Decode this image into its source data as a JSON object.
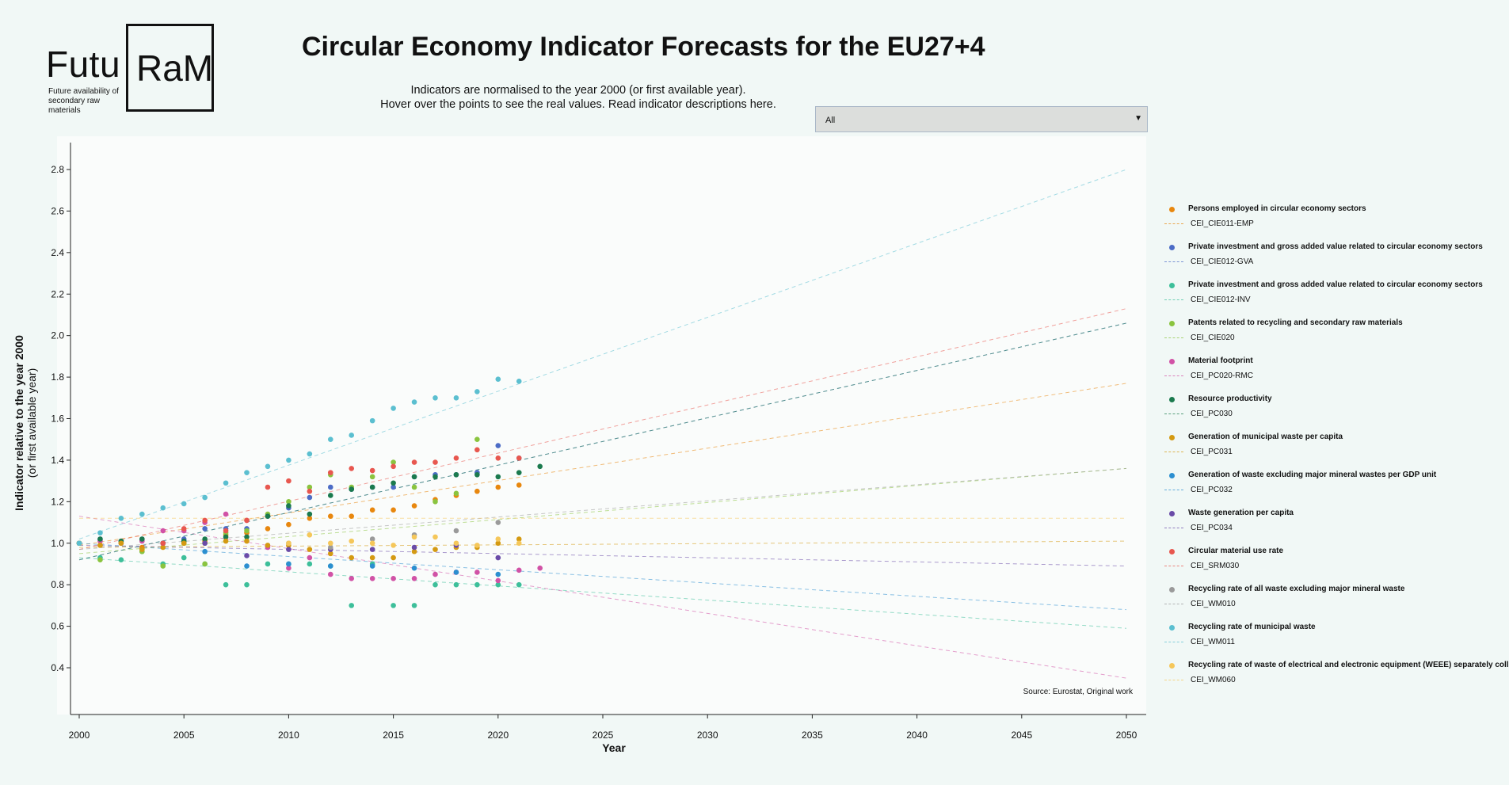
{
  "logo": {
    "left_text": "Futu",
    "box_text": "RaM",
    "tagline": "Future availability of secondary raw materials"
  },
  "header": {
    "title": "Circular Economy Indicator Forecasts for the EU27+4",
    "subtitle_line1": "Indicators are normalised to the year 2000 (or first available year).",
    "subtitle_line2": "Hover over the points to see the real values. Read indicator descriptions here."
  },
  "dropdown": {
    "selected": "All"
  },
  "source": "Source: Eurostat, Original work",
  "chart_data": {
    "type": "scatter",
    "xlabel": "Year",
    "ylabel_line1": "Indicator relative to the year 2000",
    "ylabel_line2": "(or first available year)",
    "xlim": [
      2000,
      2050
    ],
    "ylim": [
      0.2,
      2.95
    ],
    "x_ticks": [
      2000,
      2005,
      2010,
      2015,
      2020,
      2025,
      2030,
      2035,
      2040,
      2045,
      2050
    ],
    "y_ticks": [
      0.4,
      0.6,
      0.8,
      1.0,
      1.2,
      1.4,
      1.6,
      1.8,
      2.0,
      2.2,
      2.4,
      2.6,
      2.8
    ],
    "legend_position": "right",
    "grid": false,
    "series": [
      {
        "name": "Persons employed in circular economy sectors",
        "code": "CEI_CIE011-EMP",
        "color": "#e8870e",
        "points": [
          [
            2000,
            1.0
          ],
          [
            2001,
            0.99
          ],
          [
            2002,
            1.0
          ],
          [
            2003,
            0.98
          ],
          [
            2004,
            1.0
          ],
          [
            2005,
            1.0
          ],
          [
            2006,
            1.01
          ],
          [
            2007,
            1.04
          ],
          [
            2008,
            1.05
          ],
          [
            2009,
            1.07
          ],
          [
            2010,
            1.09
          ],
          [
            2011,
            1.12
          ],
          [
            2012,
            1.13
          ],
          [
            2013,
            1.13
          ],
          [
            2014,
            1.16
          ],
          [
            2015,
            1.16
          ],
          [
            2016,
            1.18
          ],
          [
            2017,
            1.21
          ],
          [
            2018,
            1.23
          ],
          [
            2019,
            1.25
          ],
          [
            2020,
            1.27
          ],
          [
            2021,
            1.28
          ]
        ],
        "trend": [
          [
            2000,
            0.99
          ],
          [
            2050,
            1.77
          ]
        ]
      },
      {
        "name": "Private investment and gross added value related to circular economy sectors",
        "code": "CEI_CIE012-GVA",
        "color": "#4c6cc6",
        "points": [
          [
            2000,
            1.0
          ],
          [
            2001,
            1.02
          ],
          [
            2002,
            1.01
          ],
          [
            2003,
            1.02
          ],
          [
            2004,
            1.0
          ],
          [
            2005,
            1.02
          ],
          [
            2006,
            1.07
          ],
          [
            2007,
            1.07
          ],
          [
            2008,
            1.07
          ],
          [
            2009,
            1.13
          ],
          [
            2010,
            1.17
          ],
          [
            2011,
            1.22
          ],
          [
            2012,
            1.27
          ],
          [
            2013,
            1.26
          ],
          [
            2014,
            1.27
          ],
          [
            2015,
            1.27
          ],
          [
            2016,
            1.32
          ],
          [
            2017,
            1.33
          ],
          [
            2018,
            1.33
          ],
          [
            2019,
            1.34
          ],
          [
            2020,
            1.47
          ],
          [
            2021,
            1.41
          ]
        ],
        "trend": [
          [
            2000,
            0.92
          ],
          [
            2050,
            2.06
          ]
        ]
      },
      {
        "name": "Private investment and gross added value related to circular economy sectors",
        "code": "CEI_CIE012-INV",
        "color": "#3dbf9a",
        "points": [
          [
            2000,
            1.0
          ],
          [
            2001,
            0.93
          ],
          [
            2002,
            0.92
          ],
          [
            2003,
            0.96
          ],
          [
            2004,
            0.9
          ],
          [
            2005,
            0.93
          ],
          [
            2006,
            0.9
          ],
          [
            2007,
            0.8
          ],
          [
            2008,
            0.8
          ],
          [
            2009,
            0.9
          ],
          [
            2010,
            0.9
          ],
          [
            2011,
            0.9
          ],
          [
            2012,
            0.89
          ],
          [
            2013,
            0.7
          ],
          [
            2014,
            0.9
          ],
          [
            2015,
            0.7
          ],
          [
            2016,
            0.7
          ],
          [
            2017,
            0.8
          ],
          [
            2018,
            0.8
          ],
          [
            2019,
            0.8
          ],
          [
            2020,
            0.8
          ],
          [
            2021,
            0.8
          ]
        ],
        "trend": [
          [
            2000,
            0.93
          ],
          [
            2050,
            0.59
          ]
        ]
      },
      {
        "name": "Patents related to recycling and secondary raw materials",
        "code": "CEI_CIE020",
        "color": "#8ac43f",
        "points": [
          [
            2000,
            1.0
          ],
          [
            2001,
            0.92
          ],
          [
            2002,
            1.0
          ],
          [
            2003,
            0.96
          ],
          [
            2004,
            0.89
          ],
          [
            2005,
            1.0
          ],
          [
            2006,
            0.9
          ],
          [
            2007,
            1.05
          ],
          [
            2008,
            1.06
          ],
          [
            2009,
            1.14
          ],
          [
            2010,
            1.2
          ],
          [
            2011,
            1.27
          ],
          [
            2012,
            1.33
          ],
          [
            2013,
            1.27
          ],
          [
            2014,
            1.32
          ],
          [
            2015,
            1.39
          ],
          [
            2016,
            1.27
          ],
          [
            2017,
            1.2
          ],
          [
            2018,
            1.24
          ],
          [
            2019,
            1.5
          ]
        ],
        "trend": [
          [
            2000,
            0.95
          ],
          [
            2050,
            1.36
          ]
        ]
      },
      {
        "name": "Material footprint",
        "code": "CEI_PC020-RMC",
        "color": "#d152a6",
        "points": [
          [
            2000,
            1.0
          ],
          [
            2001,
            1.01
          ],
          [
            2002,
            1.0
          ],
          [
            2003,
            1.01
          ],
          [
            2004,
            1.06
          ],
          [
            2005,
            1.06
          ],
          [
            2006,
            1.1
          ],
          [
            2007,
            1.14
          ],
          [
            2008,
            1.11
          ],
          [
            2009,
            0.98
          ],
          [
            2010,
            0.88
          ],
          [
            2011,
            0.93
          ],
          [
            2012,
            0.85
          ],
          [
            2013,
            0.83
          ],
          [
            2014,
            0.83
          ],
          [
            2015,
            0.83
          ],
          [
            2016,
            0.83
          ],
          [
            2017,
            0.85
          ],
          [
            2018,
            0.86
          ],
          [
            2019,
            0.86
          ],
          [
            2020,
            0.82
          ],
          [
            2021,
            0.87
          ],
          [
            2022,
            0.88
          ]
        ],
        "trend": [
          [
            2000,
            1.13
          ],
          [
            2050,
            0.35
          ]
        ]
      },
      {
        "name": "Resource productivity",
        "code": "CEI_PC030",
        "color": "#1b7a4e",
        "points": [
          [
            2000,
            1.0
          ],
          [
            2001,
            1.02
          ],
          [
            2002,
            1.01
          ],
          [
            2003,
            1.02
          ],
          [
            2004,
            1.0
          ],
          [
            2005,
            1.01
          ],
          [
            2006,
            1.02
          ],
          [
            2007,
            1.03
          ],
          [
            2008,
            1.03
          ],
          [
            2009,
            1.13
          ],
          [
            2010,
            1.18
          ],
          [
            2011,
            1.14
          ],
          [
            2012,
            1.23
          ],
          [
            2013,
            1.26
          ],
          [
            2014,
            1.27
          ],
          [
            2015,
            1.29
          ],
          [
            2016,
            1.32
          ],
          [
            2017,
            1.32
          ],
          [
            2018,
            1.33
          ],
          [
            2019,
            1.33
          ],
          [
            2020,
            1.32
          ],
          [
            2021,
            1.34
          ],
          [
            2022,
            1.37
          ]
        ],
        "trend": [
          [
            2000,
            0.92
          ],
          [
            2050,
            2.06
          ]
        ]
      },
      {
        "name": "Generation of municipal waste per capita",
        "code": "CEI_PC031",
        "color": "#d49a12",
        "points": [
          [
            2000,
            1.0
          ],
          [
            2001,
            0.99
          ],
          [
            2002,
            1.0
          ],
          [
            2003,
            0.97
          ],
          [
            2004,
            0.98
          ],
          [
            2005,
            1.0
          ],
          [
            2006,
            1.0
          ],
          [
            2007,
            1.01
          ],
          [
            2008,
            1.01
          ],
          [
            2009,
            0.99
          ],
          [
            2010,
            0.99
          ],
          [
            2011,
            0.97
          ],
          [
            2012,
            0.95
          ],
          [
            2013,
            0.93
          ],
          [
            2014,
            0.93
          ],
          [
            2015,
            0.93
          ],
          [
            2016,
            0.96
          ],
          [
            2017,
            0.97
          ],
          [
            2018,
            0.98
          ],
          [
            2019,
            0.98
          ],
          [
            2020,
            1.0
          ],
          [
            2021,
            1.02
          ]
        ],
        "trend": [
          [
            2000,
            0.98
          ],
          [
            2050,
            1.01
          ]
        ]
      },
      {
        "name": "Generation of waste excluding major mineral wastes per GDP unit",
        "code": "CEI_PC032",
        "color": "#2c8fd0",
        "points": [
          [
            2004,
            1.0
          ],
          [
            2006,
            0.96
          ],
          [
            2008,
            0.89
          ],
          [
            2010,
            0.9
          ],
          [
            2012,
            0.89
          ],
          [
            2014,
            0.89
          ],
          [
            2016,
            0.88
          ],
          [
            2018,
            0.86
          ],
          [
            2020,
            0.85
          ]
        ],
        "trend": [
          [
            2000,
            1.0
          ],
          [
            2050,
            0.68
          ]
        ]
      },
      {
        "name": "Waste generation per capita",
        "code": "CEI_PC034",
        "color": "#6a4ba8",
        "points": [
          [
            2004,
            1.0
          ],
          [
            2006,
            1.0
          ],
          [
            2008,
            0.94
          ],
          [
            2010,
            0.97
          ],
          [
            2012,
            0.97
          ],
          [
            2014,
            0.97
          ],
          [
            2016,
            0.98
          ],
          [
            2018,
            0.99
          ],
          [
            2020,
            0.93
          ]
        ],
        "trend": [
          [
            2000,
            0.99
          ],
          [
            2050,
            0.89
          ]
        ]
      },
      {
        "name": "Circular material use rate",
        "code": "CEI_SRM030",
        "color": "#e8574f",
        "points": [
          [
            2004,
            1.0
          ],
          [
            2005,
            1.07
          ],
          [
            2006,
            1.11
          ],
          [
            2007,
            1.06
          ],
          [
            2008,
            1.11
          ],
          [
            2009,
            1.27
          ],
          [
            2010,
            1.3
          ],
          [
            2011,
            1.25
          ],
          [
            2012,
            1.34
          ],
          [
            2013,
            1.36
          ],
          [
            2014,
            1.35
          ],
          [
            2015,
            1.37
          ],
          [
            2016,
            1.39
          ],
          [
            2017,
            1.39
          ],
          [
            2018,
            1.41
          ],
          [
            2019,
            1.45
          ],
          [
            2020,
            1.41
          ],
          [
            2021,
            1.41
          ]
        ],
        "trend": [
          [
            2000,
            0.97
          ],
          [
            2050,
            2.13
          ]
        ]
      },
      {
        "name": "Recycling rate of all waste excluding major mineral waste",
        "code": "CEI_WM010",
        "color": "#9a9a9a",
        "points": [
          [
            2010,
            1.0
          ],
          [
            2012,
            0.98
          ],
          [
            2014,
            1.02
          ],
          [
            2016,
            1.04
          ],
          [
            2018,
            1.06
          ],
          [
            2020,
            1.1
          ]
        ],
        "trend": [
          [
            2000,
            0.97
          ],
          [
            2050,
            1.36
          ]
        ]
      },
      {
        "name": "Recycling rate of municipal waste",
        "code": "CEI_WM011",
        "color": "#5bbfd0",
        "points": [
          [
            2000,
            1.0
          ],
          [
            2001,
            1.05
          ],
          [
            2002,
            1.12
          ],
          [
            2003,
            1.14
          ],
          [
            2004,
            1.17
          ],
          [
            2005,
            1.19
          ],
          [
            2006,
            1.22
          ],
          [
            2007,
            1.29
          ],
          [
            2008,
            1.34
          ],
          [
            2009,
            1.37
          ],
          [
            2010,
            1.4
          ],
          [
            2011,
            1.43
          ],
          [
            2012,
            1.5
          ],
          [
            2013,
            1.52
          ],
          [
            2014,
            1.59
          ],
          [
            2015,
            1.65
          ],
          [
            2016,
            1.68
          ],
          [
            2017,
            1.7
          ],
          [
            2018,
            1.7
          ],
          [
            2019,
            1.73
          ],
          [
            2020,
            1.79
          ],
          [
            2021,
            1.78
          ]
        ],
        "trend": [
          [
            2000,
            1.02
          ],
          [
            2050,
            2.8
          ]
        ]
      },
      {
        "name": "Recycling rate of waste of electrical and electronic equipment (WEEE) separately collected",
        "code": "CEI_WM060",
        "color": "#f5c75a",
        "points": [
          [
            2010,
            1.0
          ],
          [
            2011,
            1.04
          ],
          [
            2012,
            1.0
          ],
          [
            2013,
            1.01
          ],
          [
            2014,
            1.0
          ],
          [
            2015,
            0.99
          ],
          [
            2016,
            1.03
          ],
          [
            2017,
            1.03
          ],
          [
            2018,
            1.0
          ],
          [
            2019,
            0.99
          ],
          [
            2020,
            1.02
          ],
          [
            2021,
            1.0
          ]
        ],
        "trend": [
          [
            2000,
            1.12
          ],
          [
            2050,
            1.12
          ]
        ]
      }
    ]
  }
}
